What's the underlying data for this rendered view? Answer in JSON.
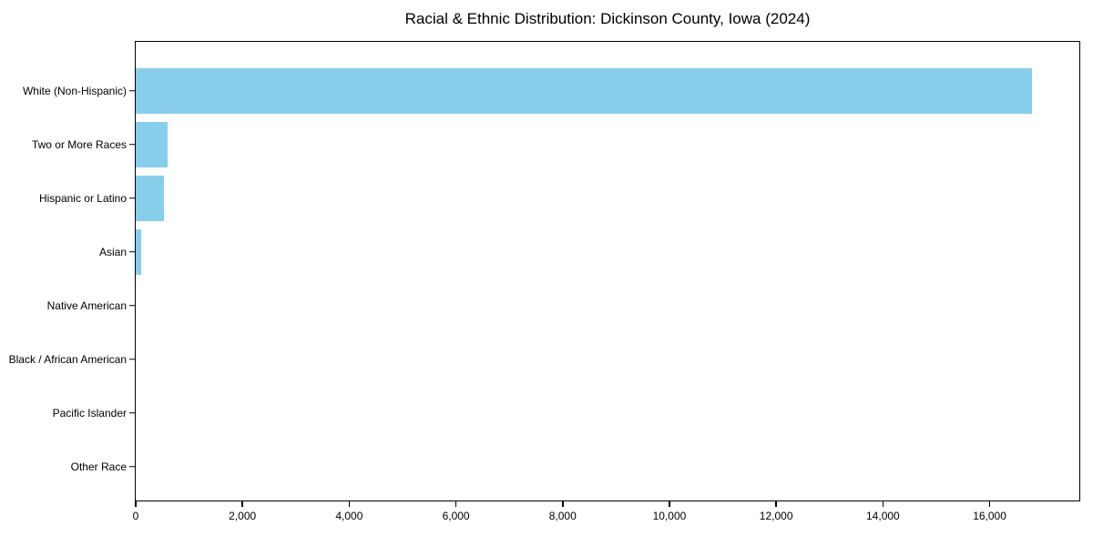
{
  "page": {
    "background": "#ffffff"
  },
  "chart_data": {
    "type": "bar",
    "orientation": "horizontal",
    "title": "Racial & Ethnic Distribution: Dickinson County, Iowa (2024)",
    "categories": [
      "White (Non-Hispanic)",
      "Two or More Races",
      "Hispanic or Latino",
      "Asian",
      "Native American",
      "Black / African American",
      "Pacific Islander",
      "Other Race"
    ],
    "values": [
      16800,
      590,
      525,
      95,
      0,
      0,
      0,
      0
    ],
    "bar_color": "#87CEEB",
    "xlabel": "",
    "ylabel": "",
    "xlim": [
      0,
      17680
    ],
    "xticks": [
      {
        "value": 0,
        "label": "0"
      },
      {
        "value": 2000,
        "label": "2,000"
      },
      {
        "value": 4000,
        "label": "4,000"
      },
      {
        "value": 6000,
        "label": "6,000"
      },
      {
        "value": 8000,
        "label": "8,000"
      },
      {
        "value": 10000,
        "label": "10,000"
      },
      {
        "value": 12000,
        "label": "12,000"
      },
      {
        "value": 14000,
        "label": "14,000"
      },
      {
        "value": 16000,
        "label": "16,000"
      }
    ],
    "grid": false,
    "legend_position": "none"
  }
}
